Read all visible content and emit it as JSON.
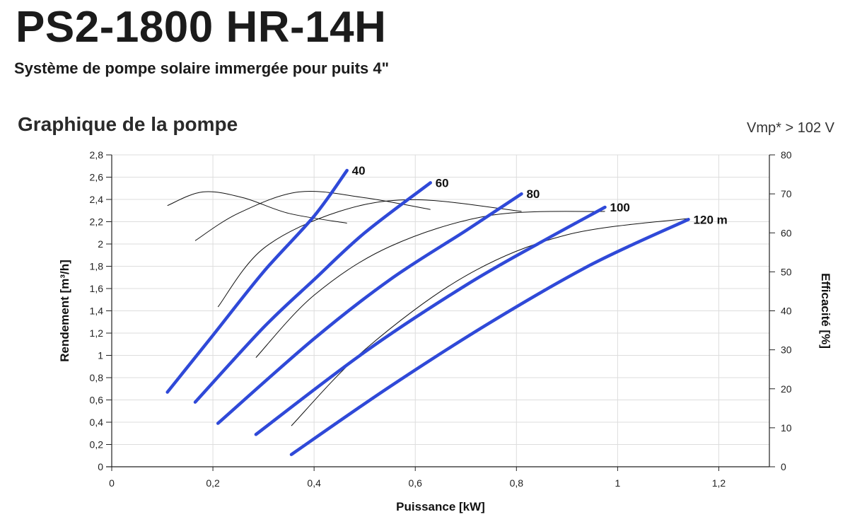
{
  "header": {
    "title": "PS2-1800 HR-14H",
    "subtitle": "Système de pompe solaire immergée pour puits 4\"",
    "section_title": "Graphique de la pompe",
    "vmp_note": "Vmp* > 102 V"
  },
  "colors": {
    "flow_curve": "#2f49d8",
    "efficiency_curve": "#111111",
    "grid": "#dddddd",
    "axis": "#222222"
  },
  "chart_data": {
    "type": "line",
    "xlabel": "Puissance [kW]",
    "ylabel": "Rendement [m³/h]",
    "y2label": "Efficacité [%]",
    "xlim": [
      0,
      1.3
    ],
    "ylim": [
      0,
      2.8
    ],
    "y2lim": [
      0,
      80
    ],
    "x_ticks": [
      "0",
      "0,2",
      "0,4",
      "0,6",
      "0,8",
      "1",
      "1,2"
    ],
    "x_tick_values": [
      0,
      0.2,
      0.4,
      0.6,
      0.8,
      1.0,
      1.2
    ],
    "y_ticks": [
      "0",
      "0,2",
      "0,4",
      "0,6",
      "0,8",
      "1",
      "1,2",
      "1,4",
      "1,6",
      "1,8",
      "2",
      "2,2",
      "2,4",
      "2,6",
      "2,8"
    ],
    "y_tick_values": [
      0,
      0.2,
      0.4,
      0.6,
      0.8,
      1.0,
      1.2,
      1.4,
      1.6,
      1.8,
      2.0,
      2.2,
      2.4,
      2.6,
      2.8
    ],
    "y2_ticks": [
      "0",
      "10",
      "20",
      "30",
      "40",
      "50",
      "60",
      "70",
      "80"
    ],
    "y2_tick_values": [
      0,
      10,
      20,
      30,
      40,
      50,
      60,
      70,
      80
    ],
    "grid": true,
    "flow_series": [
      {
        "name": "40",
        "points": [
          [
            0.11,
            0.67
          ],
          [
            0.2,
            1.18
          ],
          [
            0.3,
            1.75
          ],
          [
            0.4,
            2.25
          ],
          [
            0.465,
            2.66
          ]
        ]
      },
      {
        "name": "60",
        "points": [
          [
            0.165,
            0.58
          ],
          [
            0.3,
            1.25
          ],
          [
            0.4,
            1.68
          ],
          [
            0.5,
            2.1
          ],
          [
            0.63,
            2.55
          ]
        ]
      },
      {
        "name": "80",
        "points": [
          [
            0.21,
            0.39
          ],
          [
            0.4,
            1.15
          ],
          [
            0.55,
            1.68
          ],
          [
            0.7,
            2.12
          ],
          [
            0.81,
            2.45
          ]
        ]
      },
      {
        "name": "100",
        "points": [
          [
            0.285,
            0.29
          ],
          [
            0.5,
            1.03
          ],
          [
            0.7,
            1.63
          ],
          [
            0.85,
            2.02
          ],
          [
            0.975,
            2.33
          ]
        ]
      },
      {
        "name": "120 m",
        "points": [
          [
            0.355,
            0.11
          ],
          [
            0.55,
            0.72
          ],
          [
            0.75,
            1.3
          ],
          [
            0.95,
            1.82
          ],
          [
            1.14,
            2.22
          ]
        ]
      }
    ],
    "efficiency_series": [
      {
        "name": "40",
        "points": [
          [
            0.11,
            67
          ],
          [
            0.18,
            70.5
          ],
          [
            0.26,
            69
          ],
          [
            0.35,
            65
          ],
          [
            0.465,
            62.5
          ]
        ]
      },
      {
        "name": "60",
        "points": [
          [
            0.165,
            58
          ],
          [
            0.25,
            65
          ],
          [
            0.37,
            70.5
          ],
          [
            0.5,
            69
          ],
          [
            0.63,
            66
          ]
        ]
      },
      {
        "name": "80",
        "points": [
          [
            0.21,
            41
          ],
          [
            0.3,
            56
          ],
          [
            0.45,
            65.5
          ],
          [
            0.6,
            68.5
          ],
          [
            0.81,
            65.5
          ]
        ]
      },
      {
        "name": "100",
        "points": [
          [
            0.285,
            28
          ],
          [
            0.4,
            44
          ],
          [
            0.55,
            56.5
          ],
          [
            0.75,
            64.5
          ],
          [
            0.975,
            65.5
          ]
        ]
      },
      {
        "name": "120 m",
        "points": [
          [
            0.355,
            10.5
          ],
          [
            0.5,
            30
          ],
          [
            0.7,
            49
          ],
          [
            0.9,
            59.5
          ],
          [
            1.14,
            63.7
          ]
        ]
      }
    ]
  }
}
